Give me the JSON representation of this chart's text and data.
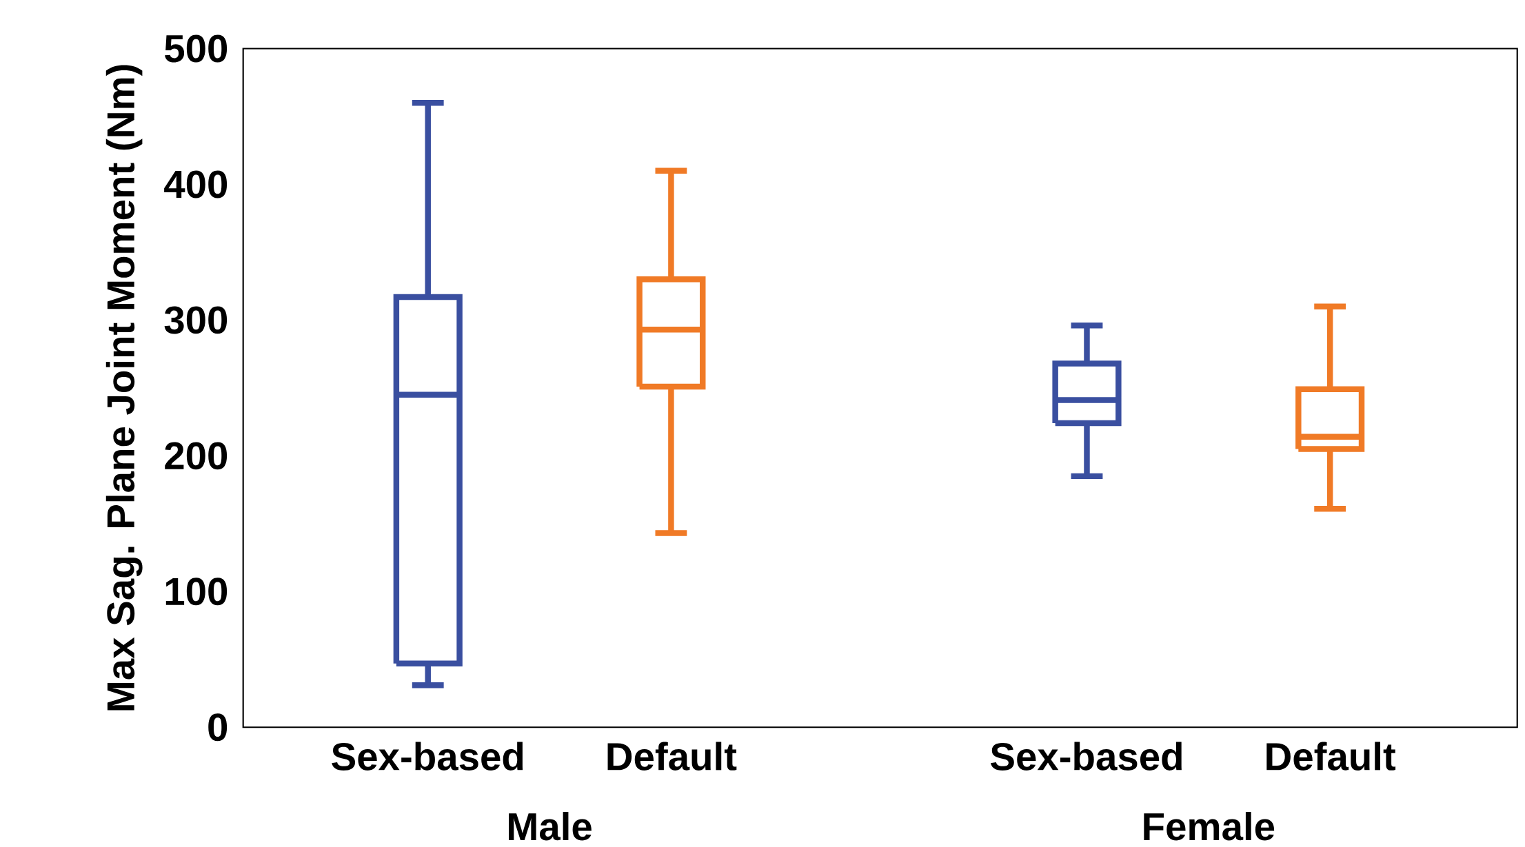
{
  "chart_data": {
    "type": "box",
    "ylabel": "Max Sag. Plane Joint Moment (Nm)",
    "categories": [
      "Sex-based",
      "Default",
      "Sex-based",
      "Default"
    ],
    "boxes": [
      {
        "low": 31,
        "q1": 47,
        "median": 245,
        "q3": 317,
        "high": 460
      },
      {
        "low": 143,
        "q1": 251,
        "median": 293,
        "q3": 330,
        "high": 410
      },
      {
        "low": 185,
        "q1": 224,
        "median": 241,
        "q3": 268,
        "high": 296
      },
      {
        "low": 161,
        "q1": 205,
        "median": 214,
        "q3": 249,
        "high": 310
      }
    ],
    "colors": [
      "#3a4fa0",
      "#f07a26",
      "#3a4fa0",
      "#f07a26"
    ],
    "annotations": [
      "Male",
      "Female"
    ],
    "ylim": [
      0,
      500
    ],
    "yticks": [
      0,
      100,
      200,
      300,
      400,
      500
    ],
    "grid": false
  }
}
